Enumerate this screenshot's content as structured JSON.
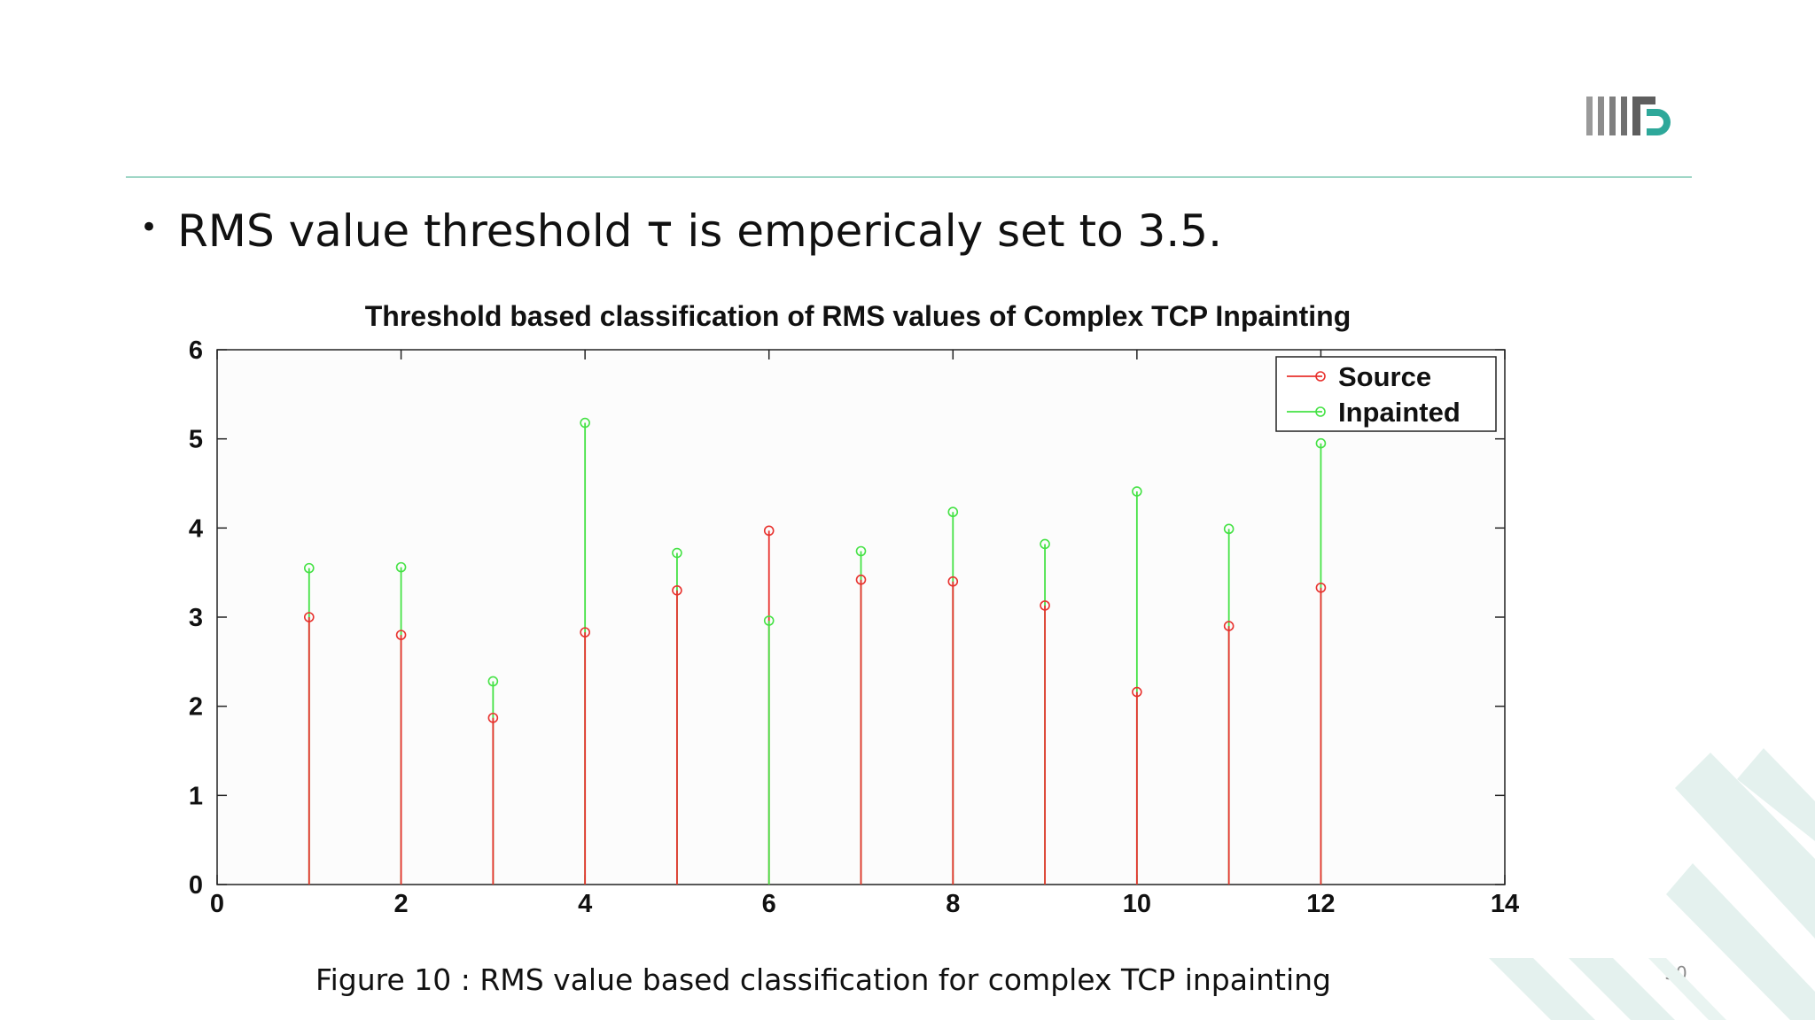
{
  "slide": {
    "bullet": "RMS value threshold τ is empericaly set to 3.5.",
    "caption": "Figure 10 : RMS value based classification for complex  TCP inpainting",
    "page_number": "30",
    "logo_text": "IIITD"
  },
  "colors": {
    "accent_rule": "#9fd6c6",
    "source": "#e8322e",
    "inpainted": "#45e245",
    "logo_dark": "#7d7d7d",
    "logo_teal": "#2ea89a",
    "deco": "#e4f1ee"
  },
  "chart_data": {
    "type": "stem",
    "title": "Threshold based classification of RMS values of Complex TCP Inpainting",
    "xlim": [
      0,
      14
    ],
    "ylim": [
      0,
      6
    ],
    "xticks": [
      0,
      2,
      4,
      6,
      8,
      10,
      12,
      14
    ],
    "yticks": [
      0,
      1,
      2,
      3,
      4,
      5,
      6
    ],
    "grid": false,
    "legend_position": "top-right",
    "x": [
      1,
      2,
      3,
      4,
      5,
      6,
      7,
      8,
      9,
      10,
      11,
      12
    ],
    "series": [
      {
        "name": "Source",
        "color": "#e8322e",
        "values": [
          3.0,
          2.8,
          1.87,
          2.83,
          3.3,
          3.97,
          3.42,
          3.4,
          3.13,
          2.16,
          2.9,
          3.33
        ]
      },
      {
        "name": "Inpainted",
        "color": "#45e245",
        "values": [
          3.55,
          3.56,
          2.28,
          5.18,
          3.72,
          2.96,
          3.74,
          4.18,
          3.82,
          4.41,
          3.99,
          4.95
        ]
      }
    ]
  }
}
